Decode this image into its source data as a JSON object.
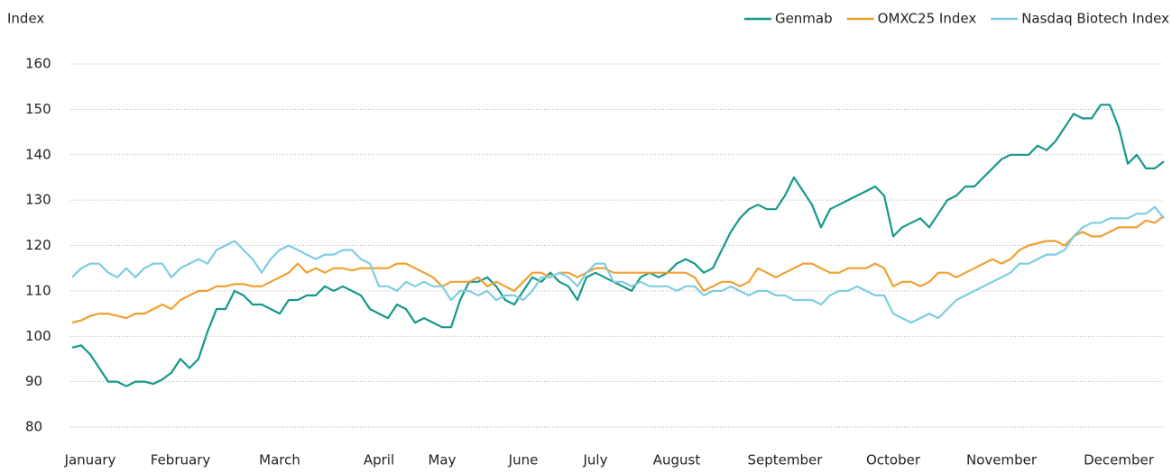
{
  "chart_data": {
    "type": "line",
    "y_label": "Index",
    "legend": "top-right",
    "grid": true,
    "categories": [
      null,
      null,
      "January",
      null,
      null,
      null,
      null,
      null,
      null,
      null,
      null,
      null,
      "February",
      null,
      null,
      null,
      null,
      null,
      null,
      null,
      null,
      null,
      null,
      "March",
      null,
      null,
      null,
      null,
      null,
      null,
      null,
      null,
      null,
      null,
      "April",
      null,
      null,
      null,
      null,
      null,
      null,
      "May",
      null,
      null,
      null,
      null,
      null,
      null,
      null,
      null,
      "June",
      null,
      null,
      null,
      null,
      null,
      null,
      null,
      "July",
      null,
      null,
      null,
      null,
      null,
      null,
      null,
      null,
      "August",
      null,
      null,
      null,
      null,
      null,
      null,
      null,
      null,
      null,
      null,
      null,
      "September",
      null,
      null,
      null,
      null,
      null,
      null,
      null,
      null,
      null,
      null,
      null,
      "October",
      null,
      null,
      null,
      null,
      null,
      null,
      null,
      null,
      null,
      null,
      null,
      "November",
      null,
      null,
      null,
      null,
      null,
      null,
      null,
      null,
      null,
      null,
      null,
      null,
      "December",
      null,
      null,
      null,
      null,
      null
    ],
    "series": [
      {
        "name": "Genmab",
        "color": "#16998a",
        "values": [
          97.5,
          98,
          96,
          93,
          90,
          90,
          89,
          90,
          90,
          89.5,
          90.5,
          92,
          95,
          93,
          95,
          101,
          106,
          106,
          110,
          109,
          107,
          107,
          106,
          105,
          108,
          108,
          109,
          109,
          111,
          110,
          111,
          110,
          109,
          106,
          105,
          104,
          107,
          106,
          103,
          104,
          103,
          102,
          102,
          108,
          112,
          112,
          113,
          111,
          108,
          107,
          110,
          113,
          112,
          114,
          112,
          111,
          108,
          113,
          114,
          113,
          112,
          111,
          110,
          113,
          114,
          113,
          114,
          116,
          117,
          116,
          114,
          115,
          119,
          123,
          126,
          128,
          129,
          128,
          128,
          131,
          135,
          132,
          129,
          124,
          128,
          129,
          130,
          131,
          132,
          133,
          131,
          122,
          124,
          125,
          126,
          124,
          127,
          130,
          131,
          133,
          133,
          135,
          137,
          139,
          140,
          140,
          140,
          142,
          141,
          143,
          146,
          149,
          148,
          148,
          151,
          151,
          146,
          138,
          140,
          137,
          137,
          138.5
        ]
      },
      {
        "name": "OMXC25 Index",
        "color": "#f0a030",
        "values": [
          103,
          103.5,
          104.5,
          105,
          105,
          104.5,
          104,
          105,
          105,
          106,
          107,
          106,
          108,
          109,
          110,
          110,
          111,
          111,
          111.5,
          111.5,
          111,
          111,
          112,
          113,
          114,
          116,
          114,
          115,
          114,
          115,
          115,
          114.5,
          115,
          115,
          115,
          115,
          116,
          116,
          115,
          114,
          113,
          111,
          112,
          112,
          112,
          113,
          111,
          112,
          111,
          110,
          112,
          114,
          114,
          113,
          114,
          114,
          113,
          114,
          115,
          115,
          114,
          114,
          114,
          114,
          114,
          114,
          114,
          114,
          114,
          113,
          110,
          111,
          112,
          112,
          111,
          112,
          115,
          114,
          113,
          114,
          115,
          116,
          116,
          115,
          114,
          114,
          115,
          115,
          115,
          116,
          115,
          111,
          112,
          112,
          111,
          112,
          114,
          114,
          113,
          114,
          115,
          116,
          117,
          116,
          117,
          119,
          120,
          120.5,
          121,
          121,
          120,
          122,
          123,
          122,
          122,
          123,
          124,
          124,
          124,
          125.5,
          125,
          126.5
        ]
      },
      {
        "name": "Nasdaq Biotech Index",
        "color": "#7fcde0",
        "values": [
          113,
          115,
          116,
          116,
          114,
          113,
          115,
          113,
          115,
          116,
          116,
          113,
          115,
          116,
          117,
          116,
          119,
          120,
          121,
          119,
          117,
          114,
          117,
          119,
          120,
          119,
          118,
          117,
          118,
          118,
          119,
          119,
          117,
          116,
          111,
          111,
          110,
          112,
          111,
          112,
          111,
          111,
          108,
          110,
          110,
          109,
          110,
          108,
          109,
          109,
          108,
          110,
          113,
          113,
          114,
          113,
          111,
          114,
          116,
          116,
          112,
          112,
          111,
          112,
          111,
          111,
          111,
          110,
          111,
          111,
          109,
          110,
          110,
          111,
          110,
          109,
          110,
          110,
          109,
          109,
          108,
          108,
          108,
          107,
          109,
          110,
          110,
          111,
          110,
          109,
          109,
          105,
          104,
          103,
          104,
          105,
          104,
          106,
          108,
          109,
          110,
          111,
          112,
          113,
          114,
          116,
          116,
          117,
          118,
          118,
          119,
          122,
          124,
          125,
          125,
          126,
          126,
          126,
          127,
          127,
          128.5,
          126
        ]
      }
    ],
    "ylim": [
      80,
      160
    ],
    "yticks": [
      80,
      90,
      100,
      110,
      120,
      130,
      140,
      150,
      160
    ]
  }
}
